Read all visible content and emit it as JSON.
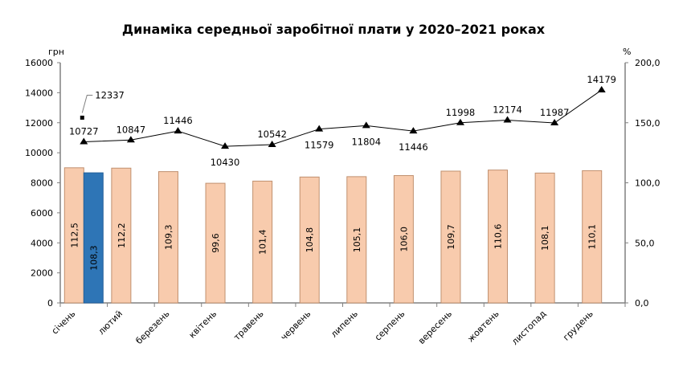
{
  "chart_data": {
    "type": "bar+line",
    "title": "Динаміка середньої заробітної плати у 2020–2021 роках",
    "ylabel_left": "грн",
    "ylabel_right": "%",
    "ylim_left": [
      0,
      16000
    ],
    "ylim_right": [
      0,
      200
    ],
    "yticks_left": [
      "0",
      "2000",
      "4000",
      "6000",
      "8000",
      "10000",
      "12000",
      "14000",
      "16000"
    ],
    "yticks_right": [
      "0,0",
      "50,0",
      "100,0",
      "150,0",
      "200,0"
    ],
    "categories": [
      "січень",
      "лютий",
      "березень",
      "квітень",
      "травень",
      "червень",
      "липень",
      "серпень",
      "вересень",
      "жовтень",
      "листопад",
      "грудень"
    ],
    "bars_2020": {
      "values": [
        112.5,
        112.2,
        109.3,
        99.6,
        101.4,
        104.8,
        105.1,
        106.0,
        109.7,
        110.6,
        108.1,
        110.1
      ],
      "labels": [
        "112,5",
        "112,2",
        "109,3",
        "99,6",
        "101,4",
        "104,8",
        "105,1",
        "106,0",
        "109,7",
        "110,6",
        "108,1",
        "110,1"
      ],
      "color": "#f8cbad"
    },
    "bars_2021": {
      "values": [
        108.3
      ],
      "labels": [
        "108,3"
      ],
      "color": "#2e75b6"
    },
    "line_2020": {
      "values": [
        10727,
        10847,
        11446,
        10430,
        10542,
        11579,
        11804,
        11446,
        11998,
        12174,
        11987,
        14179
      ],
      "labels": [
        "10727",
        "10847",
        "11446",
        "10430",
        "10542",
        "11579",
        "11804",
        "11446",
        "11998",
        "12174",
        "11987",
        "14179"
      ]
    },
    "point_2021": {
      "values": [
        12337
      ],
      "labels": [
        "12337"
      ]
    },
    "grid": false
  }
}
